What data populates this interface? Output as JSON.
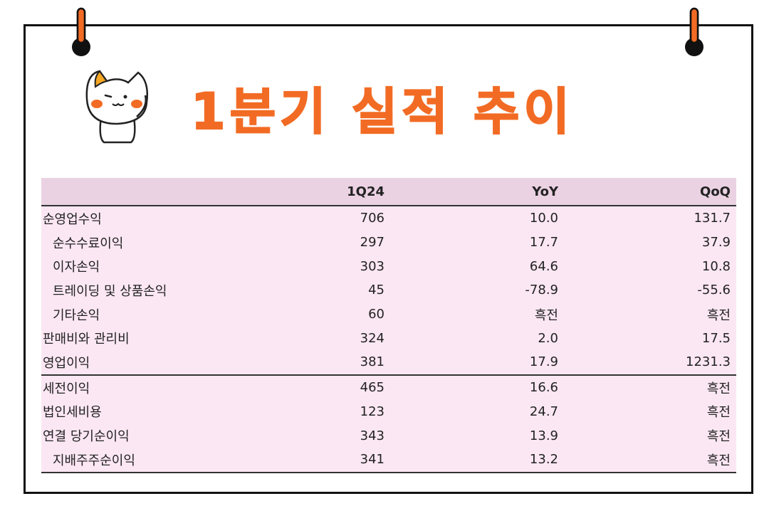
{
  "title": "1분기 실적 추이",
  "colors": {
    "accent": "#f26b24",
    "header_bg": "#ead2e3",
    "row_bg": "#fbe7f3"
  },
  "icons": [
    "pushpin-icon",
    "cat-mascot-icon"
  ],
  "table": {
    "headers": [
      "",
      "1Q24",
      "YoY",
      "QoQ"
    ],
    "rows": [
      {
        "label": "순영업수익",
        "q": "706",
        "yoy": "10.0",
        "qoq": "131.7"
      },
      {
        "label": "순수수료이익",
        "q": "297",
        "yoy": "17.7",
        "qoq": "37.9"
      },
      {
        "label": "이자손익",
        "q": "303",
        "yoy": "64.6",
        "qoq": "10.8"
      },
      {
        "label": "트레이딩 및 상품손익",
        "q": "45",
        "yoy": "-78.9",
        "qoq": "-55.6"
      },
      {
        "label": "기타손익",
        "q": "60",
        "yoy": "흑전",
        "qoq": "흑전"
      },
      {
        "label": "판매비와 관리비",
        "q": "324",
        "yoy": "2.0",
        "qoq": "17.5"
      },
      {
        "label": "영업이익",
        "q": "381",
        "yoy": "17.9",
        "qoq": "1231.3"
      },
      {
        "label": "세전이익",
        "q": "465",
        "yoy": "16.6",
        "qoq": "흑전"
      },
      {
        "label": "법인세비용",
        "q": "123",
        "yoy": "24.7",
        "qoq": "흑전"
      },
      {
        "label": "연결 당기순이익",
        "q": "343",
        "yoy": "13.9",
        "qoq": "흑전"
      },
      {
        "label": "지배주주순이익",
        "q": "341",
        "yoy": "13.2",
        "qoq": "흑전"
      }
    ]
  }
}
